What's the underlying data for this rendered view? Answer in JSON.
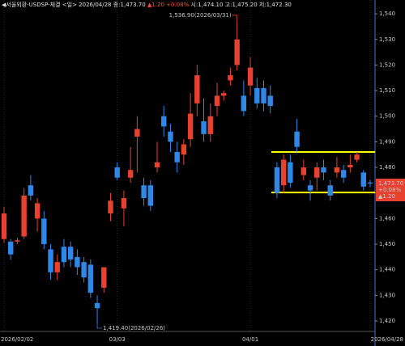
{
  "chart_data": {
    "type": "candlestick",
    "header": [
      "◀서울외환-USDSP-체결 <일> 2026/04/28 종:1,473.70",
      "▲1.20 +0.08%",
      "시:1,474.10 고:1,475.20 저:1,472.30"
    ],
    "header_colors": [
      "#e0e0e0",
      "#ff4a3a",
      "#e0e0e0"
    ],
    "categories": [
      "2026/02/02",
      null,
      null,
      null,
      null,
      null,
      null,
      null,
      null,
      null,
      null,
      null,
      null,
      null,
      null,
      null,
      null,
      "03/03",
      null,
      null,
      null,
      null,
      null,
      null,
      null,
      null,
      null,
      null,
      null,
      null,
      null,
      null,
      null,
      null,
      null,
      null,
      null,
      "04/01",
      null,
      null,
      null,
      null,
      null,
      null,
      null,
      null,
      null,
      null,
      null,
      null,
      null,
      null,
      null,
      null,
      null,
      "2026/04/28"
    ],
    "series": [
      {
        "name": "open",
        "values": [
          1452,
          1451,
          1451,
          1453,
          1473,
          1460,
          1460,
          1448,
          1439,
          1449,
          1449,
          1445,
          1443,
          1442,
          1427,
          1433,
          1462,
          1480,
          1464,
          1476,
          1492,
          1473,
          1473,
          1480,
          1500,
          1494,
          1486,
          1485,
          1491,
          1505,
          1498,
          1493,
          1504,
          1508,
          1514,
          1520,
          1508,
          1512,
          1511,
          1511,
          1508,
          1480,
          1473,
          1482,
          1494,
          1477,
          1473,
          1476,
          1480,
          1473,
          1478,
          1479,
          1480,
          1483,
          1478,
          1474.1
        ]
      },
      {
        "name": "high",
        "values": [
          1464.5,
          1452,
          1452.5,
          1472,
          1477,
          1468,
          1463,
          1450,
          1446,
          1452,
          1451,
          1448,
          1445,
          1444,
          1430,
          1441,
          1470,
          1482,
          1471,
          1488,
          1500,
          1476,
          1475,
          1490,
          1504,
          1497,
          1490,
          1491,
          1509,
          1520,
          1507,
          1505,
          1513,
          1510,
          1519,
          1536.9,
          1514,
          1523,
          1515,
          1514,
          1512,
          1482,
          1485,
          1485,
          1499,
          1483,
          1475,
          1482,
          1483,
          1475,
          1484,
          1481,
          1485,
          1486,
          1479,
          1475.2
        ]
      },
      {
        "name": "low",
        "values": [
          1450.5,
          1444,
          1450,
          1452,
          1467,
          1455,
          1448,
          1436,
          1436,
          1441,
          1441,
          1438,
          1435,
          1429,
          1419.4,
          1431,
          1459,
          1475,
          1457,
          1474,
          1478,
          1465,
          1463,
          1478,
          1492,
          1486,
          1478,
          1481,
          1488,
          1500,
          1490,
          1490,
          1500,
          1506,
          1512,
          1518,
          1500,
          1508,
          1503,
          1502,
          1501,
          1468,
          1470,
          1472,
          1486,
          1475,
          1467,
          1471,
          1475,
          1467,
          1476,
          1474,
          1478,
          1482,
          1471,
          1472.3
        ]
      },
      {
        "name": "close",
        "values": [
          1462,
          1446,
          1451.5,
          1469,
          1469,
          1466,
          1450,
          1439,
          1443,
          1443,
          1444,
          1441,
          1437,
          1431,
          1425,
          1441,
          1467,
          1476,
          1468,
          1479,
          1495,
          1468,
          1465,
          1482,
          1496,
          1490,
          1482,
          1489,
          1501,
          1516,
          1493,
          1500,
          1508,
          1509,
          1516,
          1530,
          1502,
          1519,
          1505,
          1505,
          1504,
          1470,
          1483,
          1474,
          1488,
          1480,
          1471,
          1480,
          1478,
          1469,
          1480,
          1476,
          1481,
          1485,
          1472.5,
          1473.7
        ]
      }
    ],
    "up_color": "#e8412f",
    "down_color": "#2f88e8",
    "ylim": [
      1415.9,
      1545.4
    ],
    "yticks": [
      {
        "value": 1420,
        "label": "1,420"
      },
      {
        "value": 1430,
        "label": "1,430"
      },
      {
        "value": 1440,
        "label": "1,440"
      },
      {
        "value": 1450,
        "label": "1,450"
      },
      {
        "value": 1460,
        "label": "1,460"
      },
      {
        "value": 1470,
        "label": "1,470"
      },
      {
        "value": 1480,
        "label": "1,480"
      },
      {
        "value": 1490,
        "label": "1,490"
      },
      {
        "value": 1500,
        "label": "1,500"
      },
      {
        "value": 1510,
        "label": "1,510"
      },
      {
        "value": 1520,
        "label": "1,520"
      },
      {
        "value": 1530,
        "label": "1,530"
      },
      {
        "value": 1540,
        "label": "1,540"
      }
    ],
    "hlines": [
      {
        "value": 1486,
        "color": "#ffff00"
      },
      {
        "value": 1470.2,
        "color": "#ffff00"
      }
    ],
    "annotations": [
      {
        "text": "1,536.90(2026/03/31)",
        "index": 35,
        "value": 1536.9,
        "color": "#ff4a3a"
      },
      {
        "text": "1,419.40(2026/02/26)",
        "index": 14,
        "value": 1419.4,
        "color": "#3a9aff"
      }
    ],
    "price_box": {
      "value": 1473.7,
      "lines": [
        "1,473.70",
        "+0.08%",
        "▲1.20"
      ],
      "color": "#e8412f"
    }
  }
}
